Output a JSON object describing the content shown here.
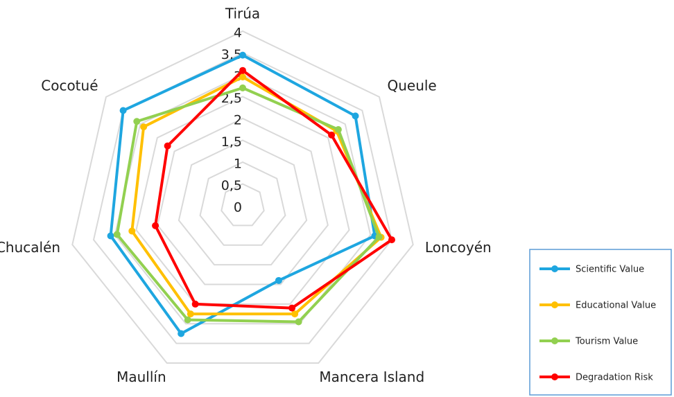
{
  "chart_data": {
    "type": "radar",
    "categories": [
      "Tirúa",
      "Queule",
      "Loncoyén",
      "Mancera Island",
      "Maullín",
      "Chucalén",
      "Cocotué"
    ],
    "series": [
      {
        "name": "Scientific Value",
        "color": "#1ea6e0",
        "values": [
          3.45,
          3.3,
          3.1,
          1.9,
          3.25,
          3.1,
          3.5
        ]
      },
      {
        "name": "Educational Value",
        "color": "#ffc000",
        "values": [
          2.95,
          2.75,
          3.25,
          2.75,
          2.75,
          2.6,
          2.9
        ]
      },
      {
        "name": "Tourism Value",
        "color": "#92d050",
        "values": [
          2.7,
          2.8,
          3.2,
          2.95,
          2.9,
          2.95,
          3.1
        ]
      },
      {
        "name": "Degradation Risk",
        "color": "#ff0000",
        "values": [
          3.1,
          2.6,
          3.5,
          2.6,
          2.5,
          2.05,
          2.2
        ]
      }
    ],
    "ylim": [
      0,
      4
    ],
    "yticks": [
      0,
      {
        "value": 0.5,
        "label": "0,5"
      },
      1,
      {
        "value": 1.5,
        "label": "1,5"
      },
      2,
      {
        "value": 2.5,
        "label": "2,5"
      },
      3,
      {
        "value": 3.5,
        "label": "3,5"
      },
      4
    ],
    "grid": true,
    "legend": "right"
  }
}
